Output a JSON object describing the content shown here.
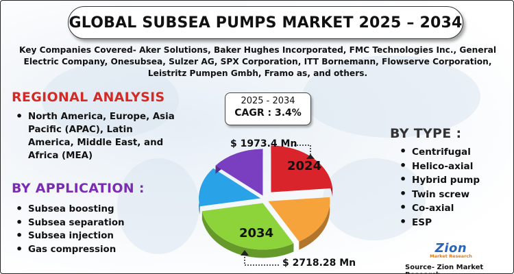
{
  "header": {
    "title": "GLOBAL SUBSEA PUMPS MARKET 2025 – 2034",
    "companies": "Key Companies Covered- Aker Solutions, Baker Hughes Incorporated, FMC Technologies Inc., General Electric Company, Onesubsea, Sulzer AG, SPX Corporation, ITT Bornemann, Flowserve Corporation, Leistritz Pumpen Gmbh, Framo as, and others."
  },
  "regional": {
    "title": "REGIONAL ANALYSIS",
    "items": [
      "North America, Europe, Asia Pacific (APAC), Latin America, Middle East, and Africa (MEA)"
    ]
  },
  "application": {
    "title": "BY APPLICATION :",
    "items": [
      "Subsea boosting",
      "Subsea separation",
      "Subsea injection",
      "Gas compression"
    ]
  },
  "type": {
    "title": "BY TYPE :",
    "items": [
      "Centrifugal",
      "Helico-axial",
      "Hybrid pump",
      "Twin screw",
      "Co-axial",
      "ESP"
    ]
  },
  "cagr": {
    "period": "2025 - 2034",
    "value": "CAGR : 3.4%"
  },
  "chart_data": {
    "type": "pie",
    "slice_labels": [
      "2024",
      "2034"
    ],
    "value_labels": [
      "$ 1973.4 Mn",
      "$ 2718.28 Mn"
    ],
    "values": [
      1973.4,
      2718.28
    ],
    "slice_colors": [
      "#d9242c",
      "#f6a33c",
      "#8cd43a",
      "#2aa2e8",
      "#7a3fc1"
    ]
  },
  "footer": {
    "logo": "Zion",
    "logo_sub": "Market Research",
    "source": "Source- Zion Market Research"
  }
}
